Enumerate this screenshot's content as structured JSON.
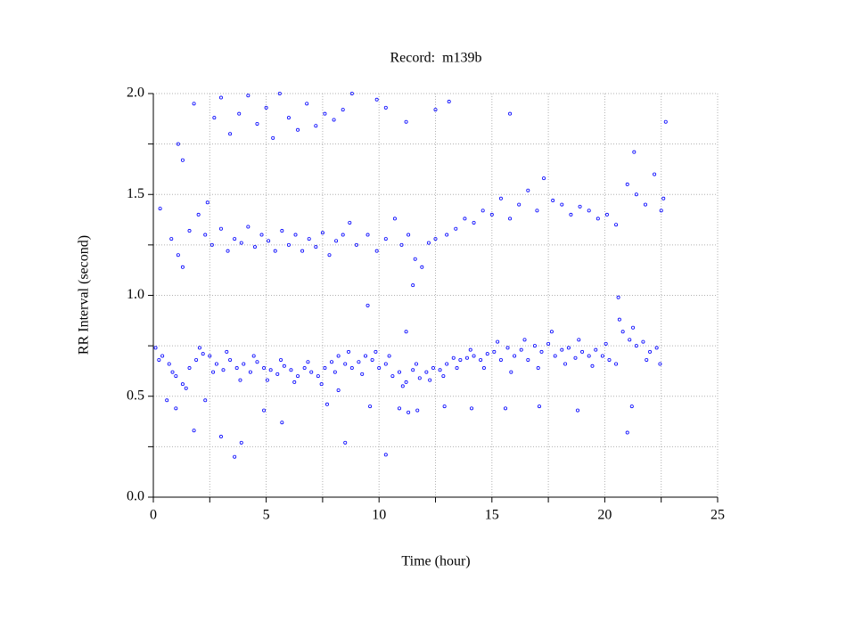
{
  "chart_data": {
    "type": "scatter",
    "title": "Record:  m139b",
    "xlabel": "Time (hour)",
    "ylabel": "RR Interval (second)",
    "color": "#0000ff",
    "grid": true,
    "xlim": [
      0,
      25
    ],
    "ylim": [
      0,
      2
    ],
    "xticks": [
      0,
      5,
      10,
      15,
      20,
      25
    ],
    "x_minor_ticks": [
      2.5,
      7.5,
      12.5,
      17.5,
      22.5
    ],
    "yticks": [
      {
        "value": 0,
        "label": "0.0"
      },
      0.5,
      {
        "value": 1,
        "label": "1.0"
      },
      1.5,
      {
        "value": 2,
        "label": "2.0"
      }
    ],
    "y_minor_ticks": [
      0.25,
      0.75,
      1.25,
      1.75
    ],
    "x": [
      0.1,
      0.4,
      0.7,
      1.0,
      1.3,
      1.6,
      1.9,
      2.2,
      2.5,
      2.8,
      3.1,
      3.4,
      3.7,
      4.0,
      4.3,
      4.6,
      4.9,
      5.2,
      5.5,
      5.8,
      6.1,
      6.4,
      6.7,
      7.0,
      7.3,
      7.6,
      7.9,
      8.2,
      8.5,
      8.8,
      9.1,
      9.4,
      9.7,
      10.0,
      10.3,
      10.6,
      10.9,
      11.2,
      11.5,
      11.8,
      12.1,
      12.4,
      12.7,
      13.0,
      13.3,
      13.6,
      13.9,
      14.2,
      14.5,
      14.8,
      15.1,
      15.4,
      15.7,
      16.0,
      16.3,
      16.6,
      16.9,
      17.2,
      17.5,
      17.8,
      18.1,
      18.4,
      18.7,
      19.0,
      19.3,
      19.6,
      19.9,
      20.2,
      20.5,
      20.8,
      21.1,
      21.4,
      21.7,
      22.0,
      22.3,
      0.25,
      0.85,
      1.45,
      2.05,
      2.65,
      3.25,
      3.85,
      4.45,
      5.05,
      5.65,
      6.25,
      6.85,
      7.45,
      8.05,
      8.65,
      9.25,
      9.85,
      10.45,
      11.05,
      11.65,
      12.25,
      12.85,
      13.45,
      14.05,
      14.65,
      15.25,
      15.85,
      16.45,
      17.05,
      17.65,
      18.25,
      18.85,
      19.45,
      20.05,
      20.65,
      21.25,
      21.85,
      22.45,
      0.8,
      1.1,
      1.3,
      1.6,
      2.0,
      2.3,
      2.6,
      3.0,
      3.3,
      3.6,
      3.9,
      4.2,
      4.5,
      4.8,
      5.1,
      5.4,
      5.7,
      6.0,
      6.3,
      6.6,
      6.9,
      7.2,
      7.5,
      7.8,
      8.1,
      8.4,
      8.7,
      9.0,
      9.5,
      9.9,
      10.3,
      10.7,
      11.0,
      11.3,
      11.6,
      11.9,
      12.2,
      12.5,
      0.3,
      2.4,
      13.0,
      13.4,
      13.8,
      14.2,
      14.6,
      15.0,
      15.4,
      15.8,
      16.2,
      16.6,
      17.0,
      17.3,
      17.7,
      18.1,
      18.5,
      18.9,
      19.3,
      19.7,
      20.1,
      20.5,
      21.0,
      21.4,
      21.8,
      22.2,
      22.5,
      22.6,
      1.1,
      1.3,
      1.8,
      2.7,
      3.0,
      3.4,
      3.8,
      4.2,
      4.6,
      5.0,
      5.3,
      5.6,
      6.0,
      6.4,
      6.8,
      7.2,
      7.6,
      8.0,
      8.4,
      8.8,
      9.9,
      10.3,
      11.2,
      12.5,
      13.1,
      15.8,
      21.3,
      22.7,
      0.6,
      1.0,
      1.8,
      2.3,
      3.0,
      3.6,
      3.9,
      4.9,
      5.7,
      7.7,
      8.5,
      9.6,
      10.3,
      10.9,
      11.3,
      11.7,
      12.9,
      14.1,
      15.6,
      17.1,
      18.8,
      21.0,
      21.2,
      9.5,
      11.5,
      11.2,
      20.6,
      8.2
    ],
    "values": [
      0.74,
      0.7,
      0.66,
      0.6,
      0.56,
      0.64,
      0.68,
      0.71,
      0.7,
      0.66,
      0.63,
      0.68,
      0.64,
      0.66,
      0.62,
      0.67,
      0.64,
      0.63,
      0.61,
      0.65,
      0.63,
      0.6,
      0.64,
      0.62,
      0.6,
      0.64,
      0.67,
      0.7,
      0.66,
      0.64,
      0.67,
      0.7,
      0.68,
      0.64,
      0.66,
      0.6,
      0.62,
      0.57,
      0.63,
      0.59,
      0.62,
      0.64,
      0.63,
      0.66,
      0.69,
      0.68,
      0.69,
      0.7,
      0.68,
      0.71,
      0.72,
      0.68,
      0.74,
      0.7,
      0.73,
      0.68,
      0.75,
      0.72,
      0.76,
      0.7,
      0.73,
      0.74,
      0.69,
      0.72,
      0.7,
      0.73,
      0.7,
      0.68,
      0.66,
      0.82,
      0.78,
      0.75,
      0.77,
      0.72,
      0.74,
      0.68,
      0.62,
      0.54,
      0.74,
      0.62,
      0.72,
      0.58,
      0.7,
      0.58,
      0.68,
      0.57,
      0.67,
      0.56,
      0.62,
      0.72,
      0.61,
      0.72,
      0.7,
      0.55,
      0.66,
      0.58,
      0.6,
      0.64,
      0.73,
      0.64,
      0.77,
      0.62,
      0.78,
      0.64,
      0.82,
      0.66,
      0.78,
      0.65,
      0.76,
      0.88,
      0.84,
      0.68,
      0.66,
      1.28,
      1.2,
      1.14,
      1.32,
      1.4,
      1.3,
      1.25,
      1.33,
      1.22,
      1.28,
      1.26,
      1.34,
      1.24,
      1.3,
      1.27,
      1.22,
      1.32,
      1.25,
      1.3,
      1.22,
      1.28,
      1.24,
      1.31,
      1.2,
      1.27,
      1.3,
      1.36,
      1.25,
      1.3,
      1.22,
      1.28,
      1.38,
      1.25,
      1.3,
      1.18,
      1.14,
      1.26,
      1.28,
      1.43,
      1.46,
      1.3,
      1.33,
      1.38,
      1.36,
      1.42,
      1.4,
      1.48,
      1.38,
      1.45,
      1.52,
      1.42,
      1.58,
      1.47,
      1.45,
      1.4,
      1.44,
      1.42,
      1.38,
      1.4,
      1.35,
      1.55,
      1.5,
      1.45,
      1.6,
      1.42,
      1.48,
      1.75,
      1.67,
      1.95,
      1.88,
      1.98,
      1.8,
      1.9,
      1.99,
      1.85,
      1.93,
      1.78,
      2.0,
      1.88,
      1.82,
      1.95,
      1.84,
      1.9,
      1.87,
      1.92,
      2.0,
      1.97,
      1.93,
      1.86,
      1.92,
      1.96,
      1.9,
      1.71,
      1.86,
      0.48,
      0.44,
      0.33,
      0.48,
      0.3,
      0.2,
      0.27,
      0.43,
      0.37,
      0.46,
      0.27,
      0.45,
      0.21,
      0.44,
      0.42,
      0.43,
      0.45,
      0.44,
      0.44,
      0.45,
      0.43,
      0.32,
      0.45,
      0.95,
      1.05,
      0.82,
      0.99,
      0.53
    ]
  }
}
